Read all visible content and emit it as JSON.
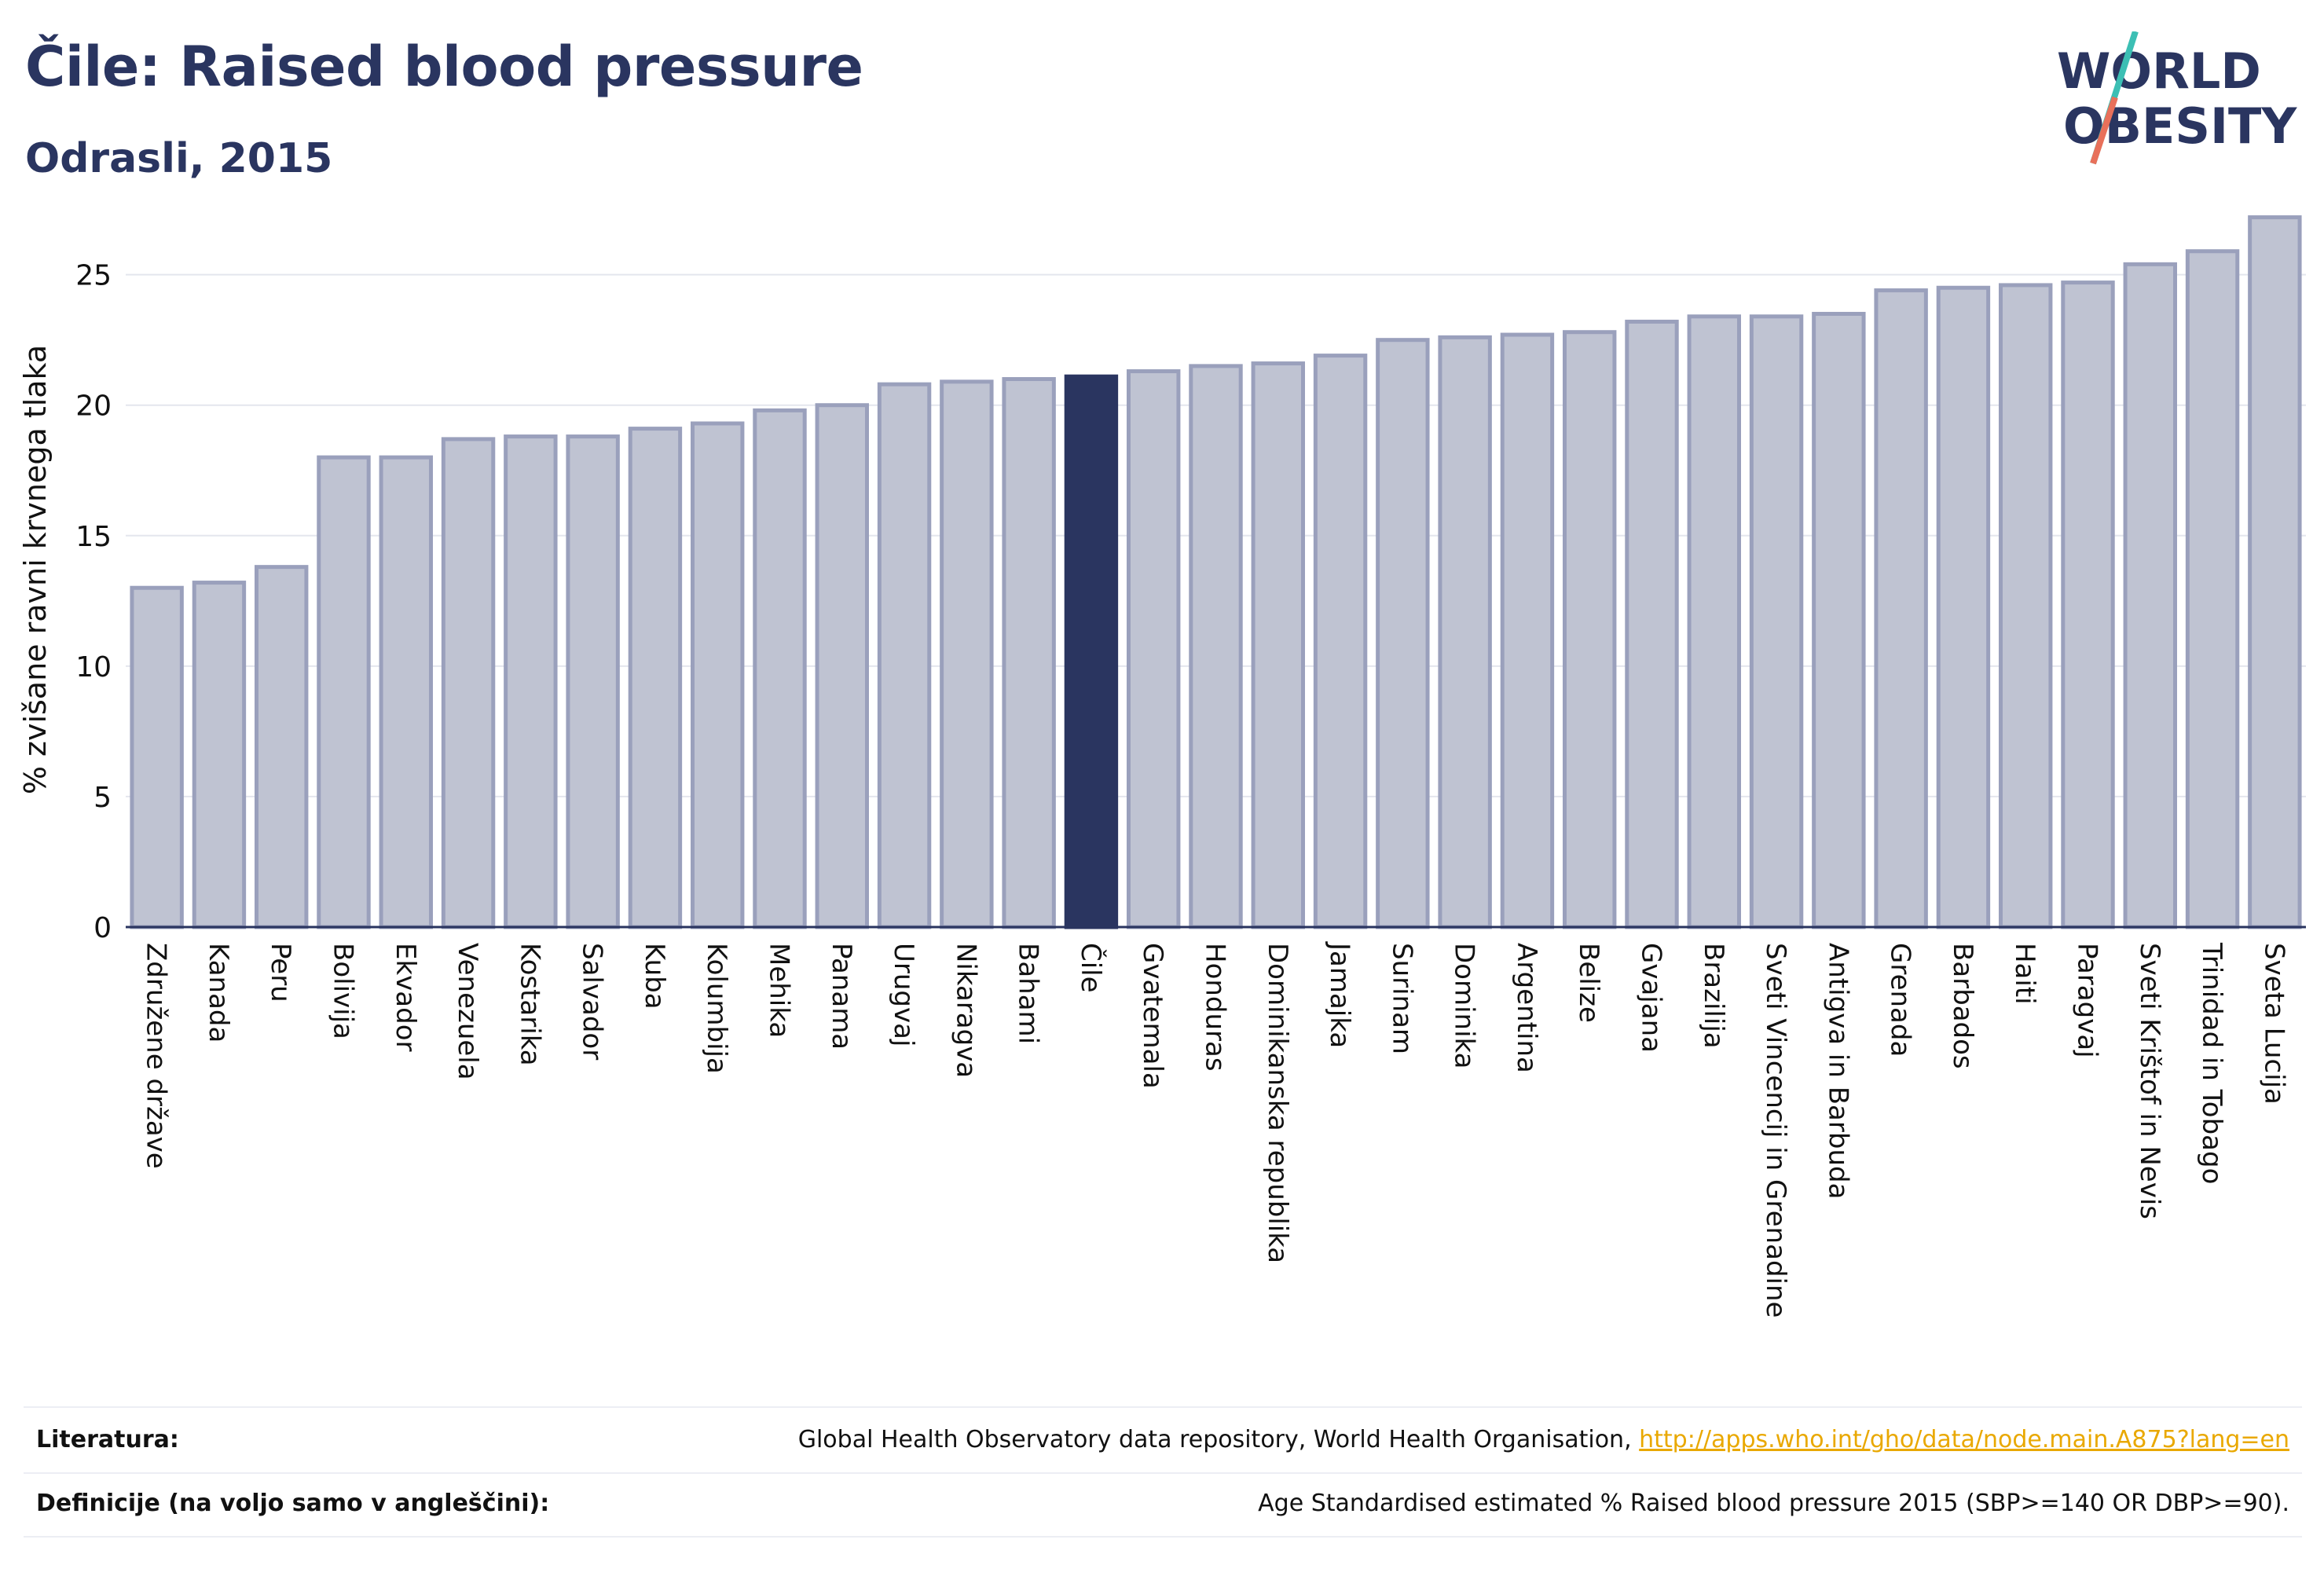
{
  "header": {
    "title": "Čile: Raised blood pressure",
    "subtitle": "Odrasli, 2015"
  },
  "logo": {
    "line1": "WORLD",
    "line2": "OBESITY"
  },
  "colors": {
    "bar_default": "#bfc3d2",
    "bar_stroke": "#9aa0bc",
    "bar_highlight": "#2a3560",
    "text": "#2a3560",
    "logo_teal": "#3cbfb4",
    "logo_coral": "#e8705a",
    "link": "#e9a800"
  },
  "chart_data": {
    "type": "bar",
    "ylabel": "% zvišane ravni krvnega tlaka",
    "ylim": [
      0,
      28
    ],
    "yticks": [
      0,
      5,
      10,
      15,
      20,
      25
    ],
    "grid": true,
    "highlight": "Čile",
    "categories": [
      "Združene države",
      "Kanada",
      "Peru",
      "Bolivija",
      "Ekvador",
      "Venezuela",
      "Kostarika",
      "Salvador",
      "Kuba",
      "Kolumbija",
      "Mehika",
      "Panama",
      "Urugvaj",
      "Nikaragva",
      "Bahami",
      "Čile",
      "Gvatemala",
      "Honduras",
      "Dominikanska republika",
      "Jamajka",
      "Surinam",
      "Dominika",
      "Argentina",
      "Belize",
      "Gvajana",
      "Brazilija",
      "Sveti Vincencij in Grenadine",
      "Antigva in Barbuda",
      "Grenada",
      "Barbados",
      "Haiti",
      "Paragvaj",
      "Sveti Krištof in Nevis",
      "Trinidad in Tobago",
      "Sveta Lucija"
    ],
    "values": [
      13.0,
      13.2,
      13.8,
      18.0,
      18.0,
      18.7,
      18.8,
      18.8,
      19.1,
      19.3,
      19.8,
      20.0,
      20.8,
      20.9,
      21.0,
      21.1,
      21.3,
      21.5,
      21.6,
      21.9,
      22.5,
      22.6,
      22.7,
      22.8,
      23.2,
      23.4,
      23.4,
      23.5,
      24.4,
      24.5,
      24.6,
      24.7,
      25.4,
      25.9,
      27.2
    ]
  },
  "footer": {
    "references_label": "Literatura:",
    "references_text": "Global Health Observatory data repository, World Health Organisation, ",
    "references_link": "http://apps.who.int/gho/data/node.main.A875?lang=en",
    "definitions_label": "Definicije (na voljo samo v angleščini):",
    "definitions_text": "Age Standardised estimated % Raised blood pressure 2015 (SBP>=140 OR DBP>=90)."
  }
}
